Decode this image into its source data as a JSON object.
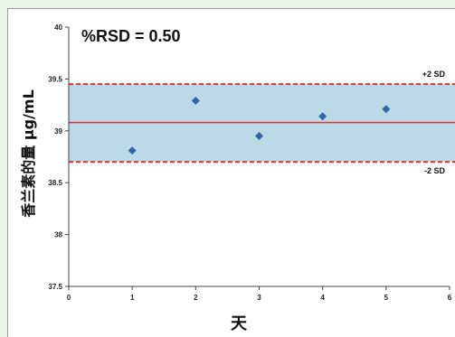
{
  "chart_data": {
    "type": "scatter",
    "annotation": "%RSD = 0.50",
    "xlabel": "天",
    "ylabel": "香兰素的量 µg/mL",
    "xlim": [
      0,
      6
    ],
    "ylim": [
      37.5,
      40
    ],
    "x_ticks": [
      "0",
      "1",
      "2",
      "3",
      "4",
      "5",
      "6"
    ],
    "y_ticks": [
      "37.5",
      "38",
      "38.5",
      "39",
      "39.5",
      "40"
    ],
    "points": [
      {
        "x": 1,
        "y": 38.81
      },
      {
        "x": 2,
        "y": 39.29
      },
      {
        "x": 3,
        "y": 38.95
      },
      {
        "x": 4,
        "y": 39.14
      },
      {
        "x": 5,
        "y": 39.21
      }
    ],
    "mean": 39.08,
    "upper_limit": 39.45,
    "lower_limit": 38.7,
    "upper_limit_label": "+2 SD",
    "lower_limit_label": "-2 SD",
    "colors": {
      "band_fill": "#bcd9e8",
      "limit_line": "#e03030",
      "mean_line": "#e03030",
      "marker": "#2e66a8"
    },
    "grid": false
  }
}
